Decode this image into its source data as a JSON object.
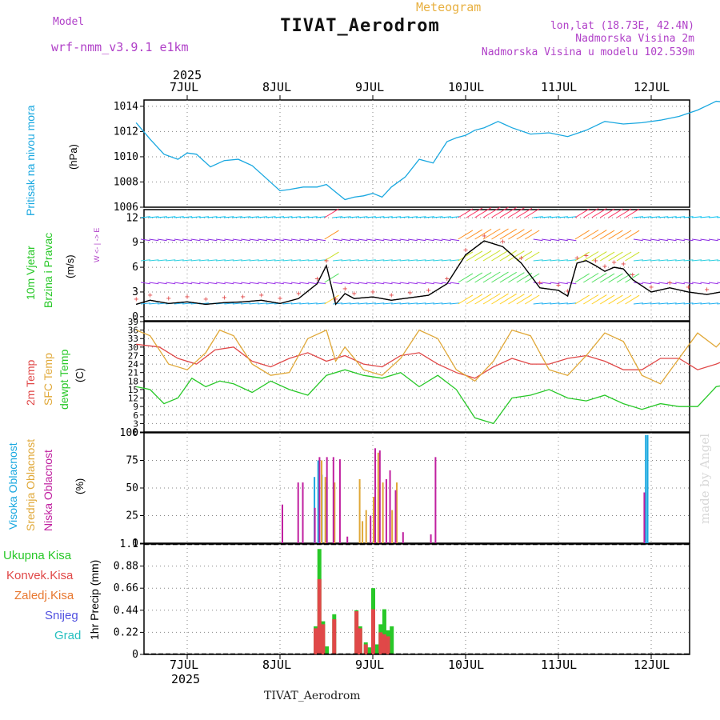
{
  "header": {
    "model_label": "Model",
    "model_name": "wrf-nmm_v3.9.1 e1km",
    "meteogram": "Meteogram",
    "title": "TIVAT_Aerodrom",
    "lonlat": "lon,lat (18.73E, 42.4N)",
    "elevation": "Nadmorska Visina 2m",
    "model_elevation": "Nadmorska Visina u modelu 102.539m"
  },
  "axis_dates": {
    "year": "2025",
    "days": [
      "7JUL",
      "8JUL",
      "9JUL",
      "10JUL",
      "11JUL",
      "12JUL"
    ]
  },
  "footer": {
    "station": "TIVAT_Aerodrom",
    "credit": "made by Angel"
  },
  "panels": {
    "pressure": {
      "label": "Pritisak na nivou mora",
      "unit": "(hPa)"
    },
    "wind": {
      "label_a": "10m Vjetar",
      "label_b": "Brzina i Pravac",
      "unit": "(m/s)",
      "compass": "W  <- | ->  E"
    },
    "temp": {
      "label_a": "2m Temp",
      "label_b": "SFC Temp",
      "label_c": "dewpt Temp",
      "unit": "(C)"
    },
    "cloud": {
      "label_a": "Visoka Oblacnost",
      "label_b": "Srednja Oblacnost",
      "label_c": "Niska Oblacnost",
      "unit": "(%)"
    },
    "precip": {
      "label": "1hr Precip (mm)",
      "legend": [
        "Ukupna Kisa",
        "Konvek.Kisa",
        "Zaledj.Kisa",
        "Snijeg",
        "Grad"
      ]
    }
  },
  "colors": {
    "pressure": "#1aa8e0",
    "temp2m": "#e04848",
    "sfc": "#e0a838",
    "dewpt": "#28c828",
    "high_cloud": "#1aa8e0",
    "mid_cloud": "#e0a838",
    "low_cloud": "#c020a0",
    "total_rain": "#28c828",
    "conv_rain": "#e04848",
    "frz_rain": "#e87830",
    "snow": "#5050e0",
    "hail": "#28c0c0",
    "wind_speed": "#000000",
    "gust": "#e04848"
  },
  "chart_data": [
    {
      "type": "line",
      "panel": "pressure",
      "x_unit": "days from 7JUL 00UTC",
      "ylim": [
        1006,
        1014.5
      ],
      "yticks": [
        1006,
        1008,
        1010,
        1012,
        1014
      ],
      "series": [
        {
          "name": "Pritisak na nivou mora",
          "x": [
            -0.55,
            -0.4,
            -0.25,
            -0.1,
            0,
            0.1,
            0.25,
            0.4,
            0.55,
            0.7,
            0.85,
            1.0,
            1.1,
            1.25,
            1.4,
            1.5,
            1.6,
            1.7,
            1.8,
            1.9,
            2.0,
            2.1,
            2.2,
            2.35,
            2.5,
            2.65,
            2.8,
            2.9,
            3.0,
            3.1,
            3.2,
            3.35,
            3.5,
            3.7,
            3.9,
            4.1,
            4.3,
            4.5,
            4.7,
            4.9,
            5.1,
            5.3,
            5.5,
            5.7,
            5.85
          ],
          "values": [
            1012.7,
            1011.4,
            1010.2,
            1009.8,
            1010.3,
            1010.2,
            1009.2,
            1009.7,
            1009.8,
            1009.3,
            1008.3,
            1007.3,
            1007.4,
            1007.6,
            1007.6,
            1007.8,
            1007.2,
            1006.6,
            1006.8,
            1006.9,
            1007.1,
            1006.8,
            1007.6,
            1008.4,
            1009.8,
            1009.5,
            1011.2,
            1011.5,
            1011.7,
            1012.1,
            1012.3,
            1012.8,
            1012.3,
            1011.8,
            1011.9,
            1011.6,
            1012.1,
            1012.8,
            1012.6,
            1012.7,
            1012.9,
            1013.2,
            1013.7,
            1014.4,
            1014.3
          ]
        }
      ]
    },
    {
      "type": "line",
      "panel": "wind",
      "x_unit": "days from 7JUL 00UTC",
      "ylim": [
        -0.5,
        13
      ],
      "yticks": [
        0,
        3,
        6,
        9,
        12
      ],
      "series": [
        {
          "name": "Brzina",
          "x": [
            -0.55,
            -0.4,
            -0.2,
            0,
            0.2,
            0.4,
            0.6,
            0.8,
            1.0,
            1.2,
            1.4,
            1.5,
            1.6,
            1.7,
            1.8,
            2.0,
            2.2,
            2.4,
            2.6,
            2.8,
            3.0,
            3.2,
            3.4,
            3.6,
            3.8,
            4.0,
            4.1,
            4.2,
            4.3,
            4.4,
            4.5,
            4.6,
            4.7,
            4.8,
            5.0,
            5.2,
            5.4,
            5.6,
            5.85
          ],
          "values": [
            1.5,
            2.0,
            1.6,
            1.8,
            1.5,
            1.7,
            1.8,
            2.0,
            1.6,
            2.2,
            4.0,
            6.2,
            1.5,
            2.8,
            2.2,
            2.4,
            2.0,
            2.3,
            2.6,
            4.0,
            7.5,
            9.2,
            8.5,
            6.5,
            3.5,
            3.2,
            2.5,
            6.5,
            6.8,
            6.2,
            5.5,
            6.0,
            5.8,
            4.5,
            3.0,
            3.5,
            3.0,
            2.7,
            3.2
          ]
        }
      ]
    },
    {
      "type": "line",
      "panel": "temp",
      "x_unit": "days from 7JUL 00UTC",
      "ylim": [
        0,
        39
      ],
      "yticks": [
        0,
        3,
        6,
        9,
        12,
        15,
        18,
        21,
        24,
        27,
        30,
        33,
        36,
        39
      ],
      "series": [
        {
          "name": "2m Temp",
          "x": [
            -0.55,
            -0.3,
            -0.1,
            0.1,
            0.3,
            0.5,
            0.7,
            0.9,
            1.1,
            1.3,
            1.5,
            1.7,
            1.9,
            2.1,
            2.3,
            2.5,
            2.7,
            2.9,
            3.1,
            3.3,
            3.5,
            3.7,
            3.9,
            4.1,
            4.3,
            4.5,
            4.7,
            4.9,
            5.1,
            5.3,
            5.5,
            5.7,
            5.85
          ],
          "values": [
            31,
            30,
            26,
            24,
            29,
            30,
            25,
            23,
            26,
            28,
            25,
            27,
            24,
            23,
            27,
            28,
            24,
            21,
            19,
            23,
            26,
            24,
            24,
            26,
            27,
            25,
            22,
            22,
            26,
            26,
            22,
            24,
            26
          ]
        },
        {
          "name": "SFC Temp",
          "x": [
            -0.55,
            -0.4,
            -0.2,
            0,
            0.2,
            0.35,
            0.5,
            0.7,
            0.9,
            1.1,
            1.3,
            1.5,
            1.6,
            1.7,
            1.9,
            2.1,
            2.3,
            2.5,
            2.7,
            2.9,
            3.1,
            3.3,
            3.5,
            3.7,
            3.9,
            4.1,
            4.3,
            4.5,
            4.7,
            4.9,
            5.1,
            5.3,
            5.5,
            5.7,
            5.85
          ],
          "values": [
            36,
            34,
            24,
            22,
            28,
            36,
            34,
            24,
            20,
            21,
            33,
            36,
            25,
            30,
            22,
            20,
            26,
            36,
            33,
            22,
            18,
            25,
            36,
            34,
            22,
            20,
            27,
            35,
            32,
            20,
            17,
            26,
            35,
            30,
            35
          ]
        },
        {
          "name": "dewpt Temp",
          "x": [
            -0.55,
            -0.4,
            -0.25,
            -0.1,
            0.05,
            0.2,
            0.35,
            0.5,
            0.7,
            0.9,
            1.1,
            1.3,
            1.5,
            1.7,
            1.9,
            2.1,
            2.3,
            2.5,
            2.7,
            2.9,
            3.1,
            3.3,
            3.5,
            3.7,
            3.9,
            4.1,
            4.3,
            4.5,
            4.7,
            4.9,
            5.1,
            5.3,
            5.5,
            5.7,
            5.85
          ],
          "values": [
            16,
            15,
            10,
            12,
            19,
            16,
            18,
            17,
            14,
            18,
            15,
            13,
            20,
            22,
            20,
            19,
            21,
            16,
            20,
            15,
            5,
            3,
            12,
            13,
            15,
            12,
            11,
            13,
            10,
            8,
            10,
            9,
            9,
            16,
            17
          ]
        }
      ]
    },
    {
      "type": "bar",
      "panel": "cloud",
      "x_unit": "days from 7JUL 00UTC",
      "ylim": [
        0,
        100
      ],
      "yticks": [
        0,
        25,
        50,
        75,
        100
      ],
      "series": [
        {
          "name": "Visoka Oblacnost",
          "x": [
            1.38,
            1.42,
            1.46,
            1.5,
            4.95,
            4.97
          ],
          "values": [
            60,
            75,
            62,
            55,
            98,
            98
          ]
        },
        {
          "name": "Srednja Oblacnost",
          "x": [
            1.44,
            1.48,
            1.58,
            1.85,
            1.88,
            1.92,
            2.0,
            2.05,
            2.1,
            2.2,
            2.25
          ],
          "values": [
            75,
            60,
            55,
            58,
            20,
            30,
            42,
            82,
            55,
            30,
            55
          ]
        },
        {
          "name": "Niska Oblacnost",
          "x": [
            1.0,
            1.17,
            1.22,
            1.35,
            1.4,
            1.48,
            1.55,
            1.62,
            1.7,
            1.95,
            2.0,
            2.05,
            2.12,
            2.16,
            2.22,
            2.3,
            2.6,
            2.65,
            4.9,
            5.85
          ],
          "values": [
            35,
            55,
            55,
            32,
            78,
            78,
            78,
            76,
            6,
            25,
            86,
            84,
            58,
            66,
            48,
            10,
            8,
            78,
            46,
            10
          ]
        }
      ]
    },
    {
      "type": "bar",
      "panel": "precip",
      "x_unit": "days from 7JUL 00UTC",
      "ylim": [
        0,
        1.1
      ],
      "yticks": [
        0,
        0.22,
        0.44,
        0.66,
        0.88,
        1.1
      ],
      "series": [
        {
          "name": "Ukupna Kisa",
          "x": [
            1.38,
            1.42,
            1.46,
            1.5,
            1.58,
            1.82,
            1.86,
            1.92,
            1.96,
            2.0,
            2.04,
            2.08,
            2.12,
            2.16,
            2.2
          ],
          "values": [
            0.28,
            1.05,
            0.33,
            0.08,
            0.4,
            0.44,
            0.28,
            0.12,
            0.07,
            0.66,
            0.1,
            0.3,
            0.45,
            0.24,
            0.28
          ]
        },
        {
          "name": "Konvek.Kisa",
          "x": [
            1.38,
            1.42,
            1.46,
            1.58,
            1.82,
            1.86,
            1.92,
            2.0,
            2.08,
            2.12,
            2.16
          ],
          "values": [
            0.26,
            0.75,
            0.3,
            0.35,
            0.43,
            0.26,
            0.1,
            0.45,
            0.22,
            0.2,
            0.18
          ]
        }
      ]
    }
  ]
}
